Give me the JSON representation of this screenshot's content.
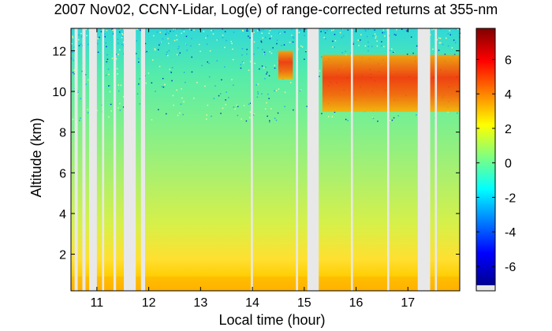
{
  "chart_data": {
    "type": "heatmap",
    "title": "2007 Nov02, CCNY-Lidar, Log(e) of range-corrected returns at 355-nm",
    "xlabel": "Local time (hour)",
    "ylabel": "Altitude (km)",
    "xlim": [
      10.5,
      18.0
    ],
    "ylim": [
      0.2,
      13.1
    ],
    "x_ticks": [
      11,
      12,
      13,
      14,
      15,
      16,
      17
    ],
    "y_ticks": [
      2,
      4,
      6,
      8,
      10,
      12
    ],
    "colorbar": {
      "range": [
        -7.1,
        7.8
      ],
      "ticks": [
        -6,
        -4,
        -2,
        0,
        2,
        4,
        6
      ],
      "colormap": "jet"
    },
    "data_gaps": [
      [
        10.57,
        10.63
      ],
      [
        10.72,
        10.78
      ],
      [
        10.85,
        11.0
      ],
      [
        11.1,
        11.14
      ],
      [
        11.32,
        11.37
      ],
      [
        11.52,
        11.75
      ],
      [
        11.85,
        11.93
      ],
      [
        13.97,
        14.01
      ],
      [
        14.84,
        14.88
      ],
      [
        15.06,
        15.28
      ],
      [
        15.9,
        15.94
      ],
      [
        16.6,
        16.64
      ],
      [
        17.19,
        17.43
      ],
      [
        17.52,
        17.56
      ]
    ],
    "features": [
      {
        "time_range": [
          14.5,
          14.78
        ],
        "altitude_range": [
          10.6,
          12.0
        ],
        "value": 5.5
      },
      {
        "time_range": [
          15.35,
          18.0
        ],
        "altitude_range": [
          9.0,
          11.8
        ],
        "value": 5.5
      }
    ]
  }
}
